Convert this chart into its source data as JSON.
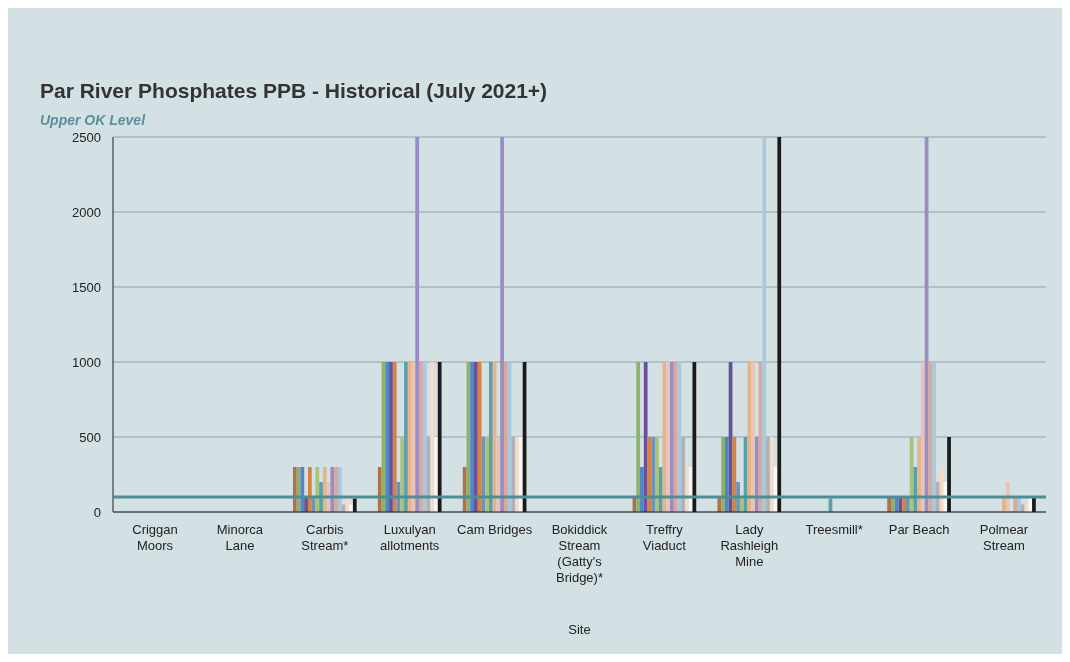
{
  "chart_data": {
    "type": "bar",
    "title": "Par River Phosphates PPB - Historical (July 2021+)",
    "subtitle": "Upper OK Level",
    "xlabel": "Site",
    "categories": [
      "Criggan Moors",
      "Minorca Lane",
      "Carbis Stream*",
      "Luxulyan allotments",
      "Cam Bridges",
      "Bokiddick Stream (Gatty's Bridge)*",
      "Treffry Viaduct",
      "Lady Rashleigh Mine",
      "Treesmill*",
      "Par Beach",
      "Polmear Stream"
    ],
    "series": [
      {
        "color": "#b0704a",
        "values": [
          null,
          null,
          300,
          300,
          300,
          null,
          100,
          100,
          null,
          100,
          null
        ]
      },
      {
        "color": "#8db26a",
        "values": [
          null,
          null,
          300,
          1000,
          1000,
          null,
          1000,
          500,
          null,
          100,
          null
        ]
      },
      {
        "color": "#4f86c6",
        "values": [
          null,
          null,
          300,
          1000,
          1000,
          null,
          300,
          500,
          null,
          100,
          null
        ]
      },
      {
        "color": "#6a4f9a",
        "values": [
          null,
          null,
          100,
          1000,
          1000,
          null,
          1000,
          1000,
          null,
          100,
          null
        ]
      },
      {
        "color": "#d4843f",
        "values": [
          null,
          null,
          300,
          1000,
          1000,
          null,
          500,
          500,
          null,
          100,
          null
        ]
      },
      {
        "color": "#6f93b8",
        "values": [
          null,
          null,
          100,
          200,
          500,
          null,
          500,
          200,
          null,
          100,
          null
        ]
      },
      {
        "color": "#a8c47c",
        "values": [
          null,
          null,
          300,
          500,
          500,
          null,
          500,
          100,
          null,
          500,
          null
        ]
      },
      {
        "color": "#5aa0a8",
        "values": [
          null,
          null,
          200,
          1000,
          1000,
          null,
          300,
          500,
          90,
          300,
          null
        ]
      },
      {
        "color": "#e6b48a",
        "values": [
          null,
          null,
          300,
          1000,
          1000,
          null,
          1000,
          1000,
          null,
          500,
          100
        ]
      },
      {
        "color": "#e9c4b4",
        "values": [
          null,
          null,
          200,
          1000,
          500,
          null,
          1000,
          1000,
          null,
          1000,
          200
        ]
      },
      {
        "color": "#9a8cc4",
        "values": [
          null,
          null,
          300,
          2500,
          2500,
          null,
          1000,
          500,
          null,
          2500,
          null
        ]
      },
      {
        "color": "#d9a89a",
        "values": [
          null,
          null,
          300,
          1000,
          1000,
          null,
          1000,
          1000,
          null,
          1000,
          100
        ]
      },
      {
        "color": "#a9c8dc",
        "values": [
          null,
          null,
          300,
          1000,
          1000,
          null,
          1000,
          2500,
          null,
          1000,
          100
        ]
      },
      {
        "color": "#b0b0b8",
        "values": [
          null,
          null,
          50,
          500,
          500,
          null,
          500,
          500,
          null,
          200,
          50
        ]
      },
      {
        "color": "#f2dcc8",
        "values": [
          null,
          null,
          100,
          1000,
          500,
          null,
          300,
          500,
          null,
          300,
          50
        ]
      },
      {
        "color": "#f7f7f5",
        "values": [
          null,
          null,
          50,
          500,
          500,
          null,
          300,
          300,
          null,
          200,
          100
        ]
      },
      {
        "color": "#1a1a1a",
        "values": [
          null,
          null,
          90,
          1000,
          1000,
          null,
          1000,
          2500,
          null,
          500,
          100
        ]
      }
    ],
    "ylim": [
      0,
      2500
    ],
    "yticks": [
      0,
      500,
      1000,
      1500,
      2000,
      2500
    ],
    "grid": "y",
    "ref_lines": [
      {
        "axis": "y",
        "value": 100,
        "color": "#4a8f98"
      }
    ]
  }
}
